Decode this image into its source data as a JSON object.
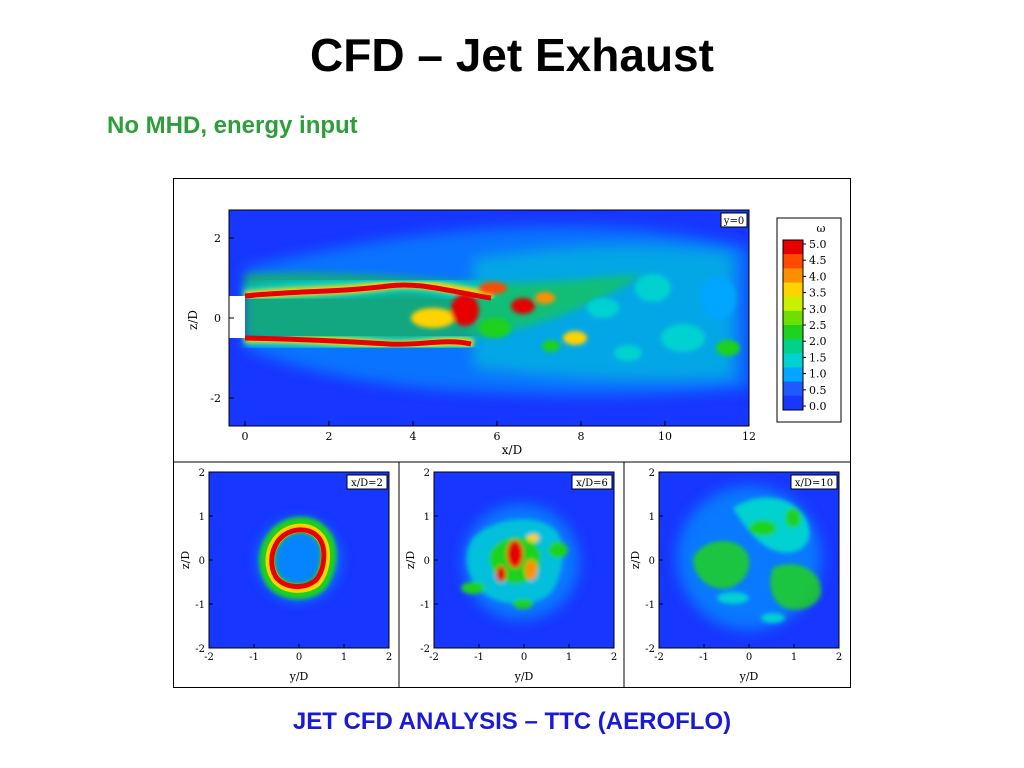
{
  "slide": {
    "title": "CFD – Jet Exhaust",
    "subtitle": "No MHD, energy input",
    "caption": "JET CFD ANALYSIS – TTC (AEROFLO)"
  },
  "colors": {
    "title": "#000000",
    "subtitle": "#2e9e3a",
    "caption": "#1a1ad6",
    "field_background": "#1736ff"
  },
  "chart_data": [
    {
      "type": "heatmap",
      "panel": "side-view",
      "label": "y=0",
      "xlabel": "x/D",
      "ylabel": "z/D",
      "xlim": [
        0,
        12
      ],
      "ylim": [
        -2.7,
        2.7
      ],
      "xticks": [
        "0",
        "2",
        "4",
        "6",
        "8",
        "10",
        "12"
      ],
      "yticks": [
        "2",
        "0",
        "-2"
      ],
      "ytick_values": [
        2,
        0,
        -2
      ],
      "xtick_values": [
        0,
        2,
        4,
        6,
        8,
        10,
        12
      ],
      "colorbar": {
        "symbol": "ω",
        "ticks": [
          "5.0",
          "4.5",
          "4.0",
          "3.5",
          "3.0",
          "2.5",
          "2.0",
          "1.5",
          "1.0",
          "0.5",
          "0.0"
        ],
        "range": [
          0,
          5.0
        ],
        "colors": [
          "#e60000",
          "#ff4a00",
          "#ff8f00",
          "#ffd300",
          "#c8f000",
          "#6de000",
          "#1fd21f",
          "#00d28a",
          "#00d2d2",
          "#00a6ff",
          "#1e5aff",
          "#1736ff"
        ]
      }
    },
    {
      "type": "heatmap",
      "panel": "cross-section",
      "label": "x/D=2",
      "xlabel": "y/D",
      "ylabel": "z/D",
      "xlim": [
        -2,
        2
      ],
      "ylim": [
        -2,
        2
      ],
      "xticks": [
        "-2",
        "-1",
        "0",
        "1",
        "2"
      ],
      "yticks": [
        "2",
        "1",
        "0",
        "-1",
        "-2"
      ]
    },
    {
      "type": "heatmap",
      "panel": "cross-section",
      "label": "x/D=6",
      "xlabel": "y/D",
      "ylabel": "z/D",
      "xlim": [
        -2,
        2
      ],
      "ylim": [
        -2,
        2
      ],
      "xticks": [
        "-2",
        "-1",
        "0",
        "1",
        "2"
      ],
      "yticks": [
        "2",
        "1",
        "0",
        "-1",
        "-2"
      ]
    },
    {
      "type": "heatmap",
      "panel": "cross-section",
      "label": "x/D=10",
      "xlabel": "y/D",
      "ylabel": "z/D",
      "xlim": [
        -2,
        2
      ],
      "ylim": [
        -2,
        2
      ],
      "xticks": [
        "-2",
        "-1",
        "0",
        "1",
        "2"
      ],
      "yticks": [
        "2",
        "1",
        "0",
        "-1",
        "-2"
      ]
    }
  ]
}
